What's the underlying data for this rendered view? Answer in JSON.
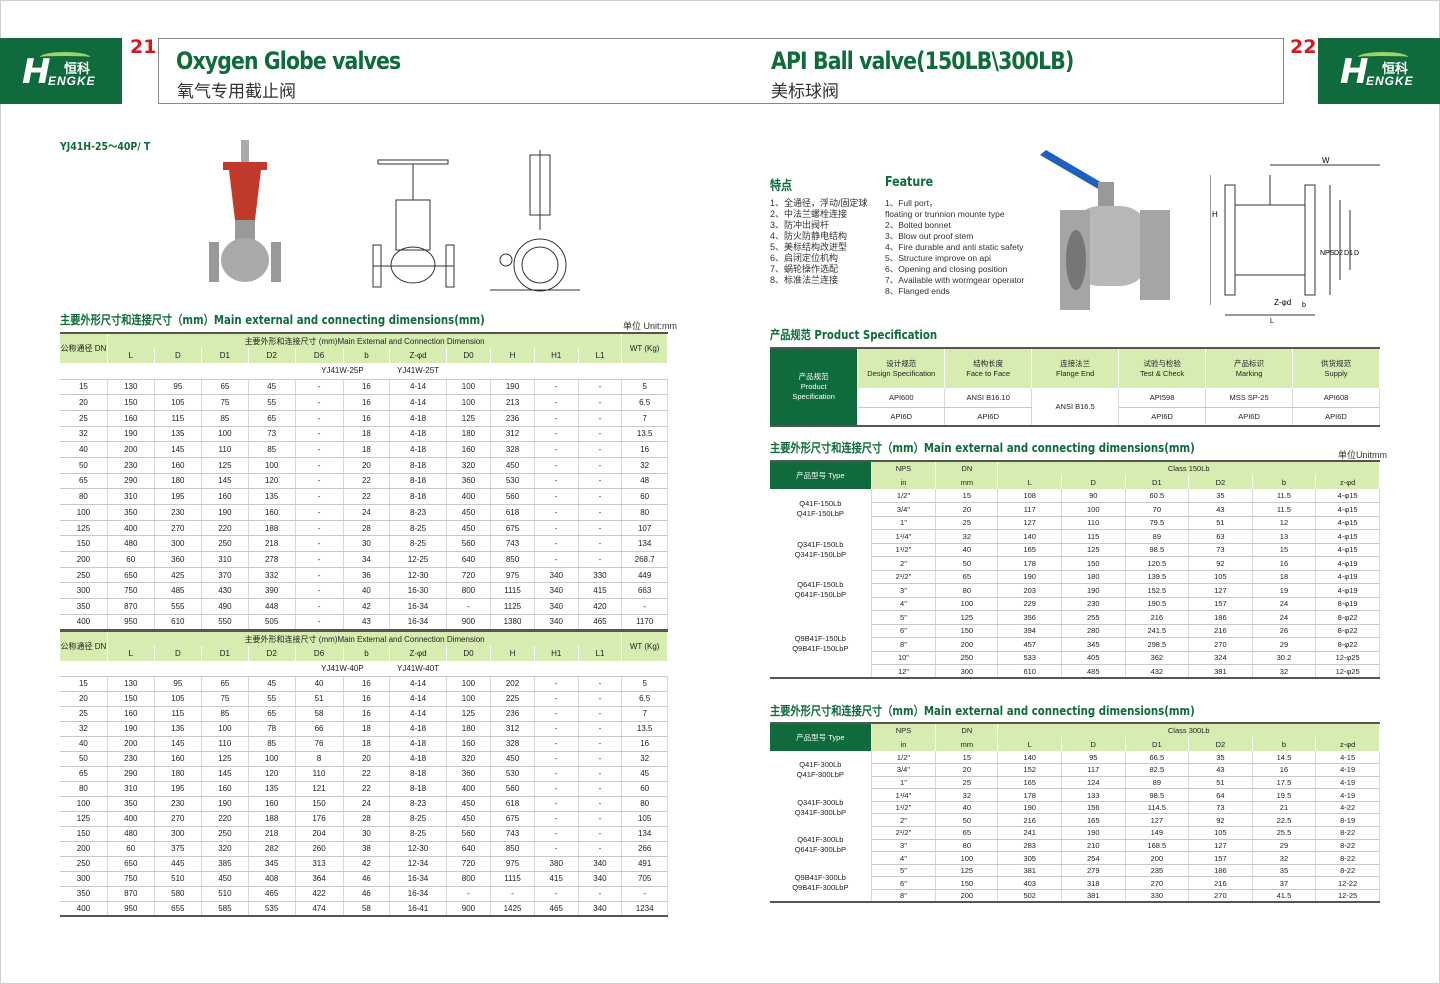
{
  "brand": {
    "logo_cn": "恒科",
    "logo_en": "ENGKE"
  },
  "left_page": {
    "page_number": "21",
    "title_en": "Oxygen Globe valves",
    "title_cn": "氧气专用截止阀",
    "model": "YJ41H-25～40P/ T",
    "section_title": "主要外形尺寸和连接尺寸（mm）Main external and connecting dimensions(mm)",
    "unit": "单位 Unit:mm",
    "tables": [
      {
        "dn_header": "公称通径 DN",
        "group_header": "主要外形和连接尺寸 (mm)Main External and Connection Dimension",
        "wt_header": "WT (Kg)",
        "columns": [
          "L",
          "D",
          "D1",
          "D2",
          "D6",
          "b",
          "Z-φd",
          "D0",
          "H",
          "H1",
          "L1"
        ],
        "model_labels": [
          "YJ41W-25P",
          "YJ41W-25T"
        ],
        "rows": [
          [
            "15",
            "130",
            "95",
            "65",
            "45",
            "-",
            "16",
            "4-14",
            "100",
            "190",
            "-",
            "-",
            "5"
          ],
          [
            "20",
            "150",
            "105",
            "75",
            "55",
            "-",
            "16",
            "4-14",
            "100",
            "213",
            "-",
            "-",
            "6.5"
          ],
          [
            "25",
            "160",
            "115",
            "85",
            "65",
            "-",
            "16",
            "4-18",
            "125",
            "236",
            "-",
            "-",
            "7"
          ],
          [
            "32",
            "190",
            "135",
            "100",
            "73",
            "-",
            "18",
            "4-18",
            "180",
            "312",
            "-",
            "-",
            "13.5"
          ],
          [
            "40",
            "200",
            "145",
            "110",
            "85",
            "-",
            "18",
            "4-18",
            "160",
            "328",
            "-",
            "-",
            "16"
          ],
          [
            "50",
            "230",
            "160",
            "125",
            "100",
            "-",
            "20",
            "8-18",
            "320",
            "450",
            "-",
            "-",
            "32"
          ],
          [
            "65",
            "290",
            "180",
            "145",
            "120",
            "-",
            "22",
            "8-18",
            "360",
            "530",
            "-",
            "-",
            "48"
          ],
          [
            "80",
            "310",
            "195",
            "160",
            "135",
            "-",
            "22",
            "8-18",
            "400",
            "560",
            "-",
            "-",
            "60"
          ],
          [
            "100",
            "350",
            "230",
            "190",
            "160",
            "-",
            "24",
            "8-23",
            "450",
            "618",
            "-",
            "-",
            "80"
          ],
          [
            "125",
            "400",
            "270",
            "220",
            "188",
            "-",
            "28",
            "8-25",
            "450",
            "675",
            "-",
            "-",
            "107"
          ],
          [
            "150",
            "480",
            "300",
            "250",
            "218",
            "-",
            "30",
            "8-25",
            "560",
            "743",
            "-",
            "-",
            "134"
          ],
          [
            "200",
            "60",
            "360",
            "310",
            "278",
            "-",
            "34",
            "12-25",
            "640",
            "850",
            "-",
            "-",
            "268.7"
          ],
          [
            "250",
            "650",
            "425",
            "370",
            "332",
            "-",
            "36",
            "12-30",
            "720",
            "975",
            "340",
            "330",
            "449"
          ],
          [
            "300",
            "750",
            "485",
            "430",
            "390",
            "-",
            "40",
            "16-30",
            "800",
            "1115",
            "340",
            "415",
            "663"
          ],
          [
            "350",
            "870",
            "555",
            "490",
            "448",
            "-",
            "42",
            "16-34",
            "-",
            "1125",
            "340",
            "420",
            "-"
          ],
          [
            "400",
            "950",
            "610",
            "550",
            "505",
            "-",
            "43",
            "16-34",
            "900",
            "1380",
            "340",
            "465",
            "1170"
          ]
        ]
      },
      {
        "dn_header": "公称通径 DN",
        "group_header": "主要外形和连接尺寸 (mm)Main External and Connection Dimension",
        "wt_header": "WT (Kg)",
        "columns": [
          "L",
          "D",
          "D1",
          "D2",
          "D6",
          "b",
          "Z-φd",
          "D0",
          "H",
          "H1",
          "L1"
        ],
        "model_labels": [
          "YJ41W-40P",
          "YJ41W-40T"
        ],
        "rows": [
          [
            "15",
            "130",
            "95",
            "65",
            "45",
            "40",
            "16",
            "4-14",
            "100",
            "202",
            "-",
            "-",
            "5"
          ],
          [
            "20",
            "150",
            "105",
            "75",
            "55",
            "51",
            "16",
            "4-14",
            "100",
            "225",
            "-",
            "-",
            "6.5"
          ],
          [
            "25",
            "160",
            "115",
            "85",
            "65",
            "58",
            "16",
            "4-14",
            "125",
            "236",
            "-",
            "-",
            "7"
          ],
          [
            "32",
            "190",
            "135",
            "100",
            "78",
            "66",
            "18",
            "4-18",
            "180",
            "312",
            "-",
            "-",
            "13.5"
          ],
          [
            "40",
            "200",
            "145",
            "110",
            "85",
            "76",
            "18",
            "4-18",
            "160",
            "328",
            "-",
            "-",
            "16"
          ],
          [
            "50",
            "230",
            "160",
            "125",
            "100",
            "8",
            "20",
            "4-18",
            "320",
            "450",
            "-",
            "-",
            "32"
          ],
          [
            "65",
            "290",
            "180",
            "145",
            "120",
            "110",
            "22",
            "8-18",
            "360",
            "530",
            "-",
            "-",
            "45"
          ],
          [
            "80",
            "310",
            "195",
            "160",
            "135",
            "121",
            "22",
            "8-18",
            "400",
            "560",
            "-",
            "-",
            "60"
          ],
          [
            "100",
            "350",
            "230",
            "190",
            "160",
            "150",
            "24",
            "8-23",
            "450",
            "618",
            "-",
            "-",
            "80"
          ],
          [
            "125",
            "400",
            "270",
            "220",
            "188",
            "176",
            "28",
            "8-25",
            "450",
            "675",
            "-",
            "-",
            "105"
          ],
          [
            "150",
            "480",
            "300",
            "250",
            "218",
            "204",
            "30",
            "8-25",
            "560",
            "743",
            "-",
            "-",
            "134"
          ],
          [
            "200",
            "60",
            "375",
            "320",
            "282",
            "260",
            "38",
            "12-30",
            "640",
            "850",
            "-",
            "-",
            "266"
          ],
          [
            "250",
            "650",
            "445",
            "385",
            "345",
            "313",
            "42",
            "12-34",
            "720",
            "975",
            "380",
            "340",
            "491"
          ],
          [
            "300",
            "750",
            "510",
            "450",
            "408",
            "364",
            "46",
            "16-34",
            "800",
            "1115",
            "415",
            "340",
            "705"
          ],
          [
            "350",
            "870",
            "580",
            "510",
            "465",
            "422",
            "46",
            "16-34",
            "-",
            "-",
            "-",
            "-",
            "-"
          ],
          [
            "400",
            "950",
            "655",
            "585",
            "535",
            "474",
            "58",
            "16-41",
            "900",
            "1425",
            "465",
            "340",
            "1234"
          ]
        ]
      }
    ]
  },
  "right_page": {
    "page_number": "22",
    "title_en": "API Ball valve(150LB\\300LB)",
    "title_cn": "美标球阀",
    "features_cn_title": "特点",
    "features_en_title": "Feature",
    "features_cn": [
      "1、全通径，浮动/固定球",
      "2、中法兰螺栓连接",
      "3、防冲出阀杆",
      "4、防火防静电结构",
      "5、美标结构改进型",
      "6、启闭定位机构",
      "7、蜗轮操作选配",
      "8、标准法兰连接"
    ],
    "features_en": [
      "1、Full port，",
      "floating or trunnion mounte type",
      "2、Bolted bonnet",
      "3、Blow out proof stem",
      "4、Fire durable and anti static safety",
      "5、Structure improve on api",
      "6、Opening and closing position",
      "7、Available with wormgear operator",
      "8、Flanged ends"
    ],
    "drawing_labels": {
      "w": "W",
      "h": "H",
      "nps": "NPS",
      "d2": "D2",
      "d1": "D1",
      "d": "D",
      "zd": "Z-φd",
      "b": "b",
      "l": "L"
    },
    "spec_title": "产品规范  Product Specification",
    "spec": {
      "row_header": [
        "产品规范",
        "Product",
        "Specification"
      ],
      "columns": [
        [
          "设计规范",
          "Design Specification"
        ],
        [
          "结构长度",
          "Face to Face"
        ],
        [
          "连接法兰",
          "Flange End"
        ],
        [
          "试验与检验",
          "Test & Check"
        ],
        [
          "产品标识",
          "Marking"
        ],
        [
          "供货规范",
          "Supply"
        ]
      ],
      "rows": [
        [
          "API600",
          "ANSI B16.10",
          "ANSI B16.5",
          "API598",
          "MSS SP-25",
          "API608"
        ],
        [
          "API6D",
          "API6D",
          "",
          "API6D",
          "API6D",
          "API6D"
        ]
      ]
    },
    "section_title": "主要外形尺寸和连接尺寸（mm）Main external and connecting dimensions(mm)",
    "unit": "单位Unitmm",
    "tables": [
      {
        "type_header": "产品型号 Type",
        "nps_header": "NPS",
        "nps_unit": "in",
        "dn_header": "DN",
        "dn_unit": "mm",
        "class_header": "Class 150Lb",
        "columns": [
          "L",
          "D",
          "D1",
          "D2",
          "b",
          "z-φd"
        ],
        "groups": [
          {
            "names": [
              "Q41F-150Lb",
              "Q41F-150LbP"
            ],
            "rows": [
              [
                "1/2\"",
                "15",
                "108",
                "90",
                "60.5",
                "35",
                "11.5",
                "4-φ15"
              ],
              [
                "3/4\"",
                "20",
                "117",
                "100",
                "70",
                "43",
                "11.5",
                "4-φ15"
              ],
              [
                "1\"",
                "25",
                "127",
                "110",
                "79.5",
                "51",
                "12",
                "4-φ15"
              ]
            ]
          },
          {
            "names": [
              "Q341F-150Lb",
              "Q341F-150LbP"
            ],
            "rows": [
              [
                "1¹/4\"",
                "32",
                "140",
                "115",
                "89",
                "63",
                "13",
                "4-φ15"
              ],
              [
                "1¹/2\"",
                "40",
                "165",
                "125",
                "98.5",
                "73",
                "15",
                "4-φ15"
              ],
              [
                "2\"",
                "50",
                "178",
                "150",
                "120.5",
                "92",
                "16",
                "4-φ19"
              ]
            ]
          },
          {
            "names": [
              "Q641F-150Lb",
              "Q641F-150LbP"
            ],
            "rows": [
              [
                "2¹/2\"",
                "65",
                "190",
                "180",
                "139.5",
                "105",
                "18",
                "4-φ19"
              ],
              [
                "3\"",
                "80",
                "203",
                "190",
                "152.5",
                "127",
                "19",
                "4-φ19"
              ],
              [
                "4\"",
                "100",
                "229",
                "230",
                "190.5",
                "157",
                "24",
                "8-φ19"
              ]
            ]
          },
          {
            "names": [
              "Q9B41F-150Lb",
              "Q9B41F-150LbP"
            ],
            "rows": [
              [
                "5\"",
                "125",
                "356",
                "255",
                "216",
                "186",
                "24",
                "8-φ22"
              ],
              [
                "6\"",
                "150",
                "394",
                "280",
                "241.5",
                "216",
                "26",
                "8-φ22"
              ],
              [
                "8\"",
                "200",
                "457",
                "345",
                "298.5",
                "270",
                "29",
                "8-φ22"
              ],
              [
                "10\"",
                "250",
                "533",
                "405",
                "362",
                "324",
                "30.2",
                "12-φ25"
              ],
              [
                "12\"",
                "300",
                "610",
                "485",
                "432",
                "381",
                "32",
                "12-φ25"
              ]
            ]
          }
        ]
      },
      {
        "type_header": "产品型号 Type",
        "nps_header": "NPS",
        "nps_unit": "in",
        "dn_header": "DN",
        "dn_unit": "mm",
        "class_header": "Class 300Lb",
        "columns": [
          "L",
          "D",
          "D1",
          "D2",
          "b",
          "z-φd"
        ],
        "groups": [
          {
            "names": [
              "Q41F-300Lb",
              "Q41F-300LbP"
            ],
            "rows": [
              [
                "1/2\"",
                "15",
                "140",
                "95",
                "66.5",
                "35",
                "14.5",
                "4-15"
              ],
              [
                "3/4\"",
                "20",
                "152",
                "117",
                "82.5",
                "43",
                "16",
                "4-19"
              ],
              [
                "1\"",
                "25",
                "165",
                "124",
                "89",
                "51",
                "17.5",
                "4-19"
              ]
            ]
          },
          {
            "names": [
              "Q341F-300Lb",
              "Q341F-300LbP"
            ],
            "rows": [
              [
                "1¹/4\"",
                "32",
                "178",
                "133",
                "98.5",
                "64",
                "19.5",
                "4-19"
              ],
              [
                "1¹/2\"",
                "40",
                "190",
                "156",
                "114.5",
                "73",
                "21",
                "4-22"
              ],
              [
                "2\"",
                "50",
                "216",
                "165",
                "127",
                "92",
                "22.5",
                "8-19"
              ]
            ]
          },
          {
            "names": [
              "Q641F-300Lb",
              "Q641F-300LbP"
            ],
            "rows": [
              [
                "2¹/2\"",
                "65",
                "241",
                "190",
                "149",
                "105",
                "25.5",
                "8-22"
              ],
              [
                "3\"",
                "80",
                "283",
                "210",
                "168.5",
                "127",
                "29",
                "8-22"
              ],
              [
                "4\"",
                "100",
                "305",
                "254",
                "200",
                "157",
                "32",
                "8-22"
              ]
            ]
          },
          {
            "names": [
              "Q9B41F-300Lb",
              "Q9B41F-300LbP"
            ],
            "rows": [
              [
                "5\"",
                "125",
                "381",
                "279",
                "235",
                "186",
                "35",
                "8-22"
              ],
              [
                "6\"",
                "150",
                "403",
                "318",
                "270",
                "216",
                "37",
                "12-22"
              ],
              [
                "8\"",
                "200",
                "502",
                "381",
                "330",
                "270",
                "41.5",
                "12-25"
              ]
            ]
          }
        ]
      }
    ]
  },
  "colors": {
    "brand_green": "#0f6b3b",
    "header_light_green": "#d7ecb1",
    "page_number_red": "#d8161b"
  }
}
